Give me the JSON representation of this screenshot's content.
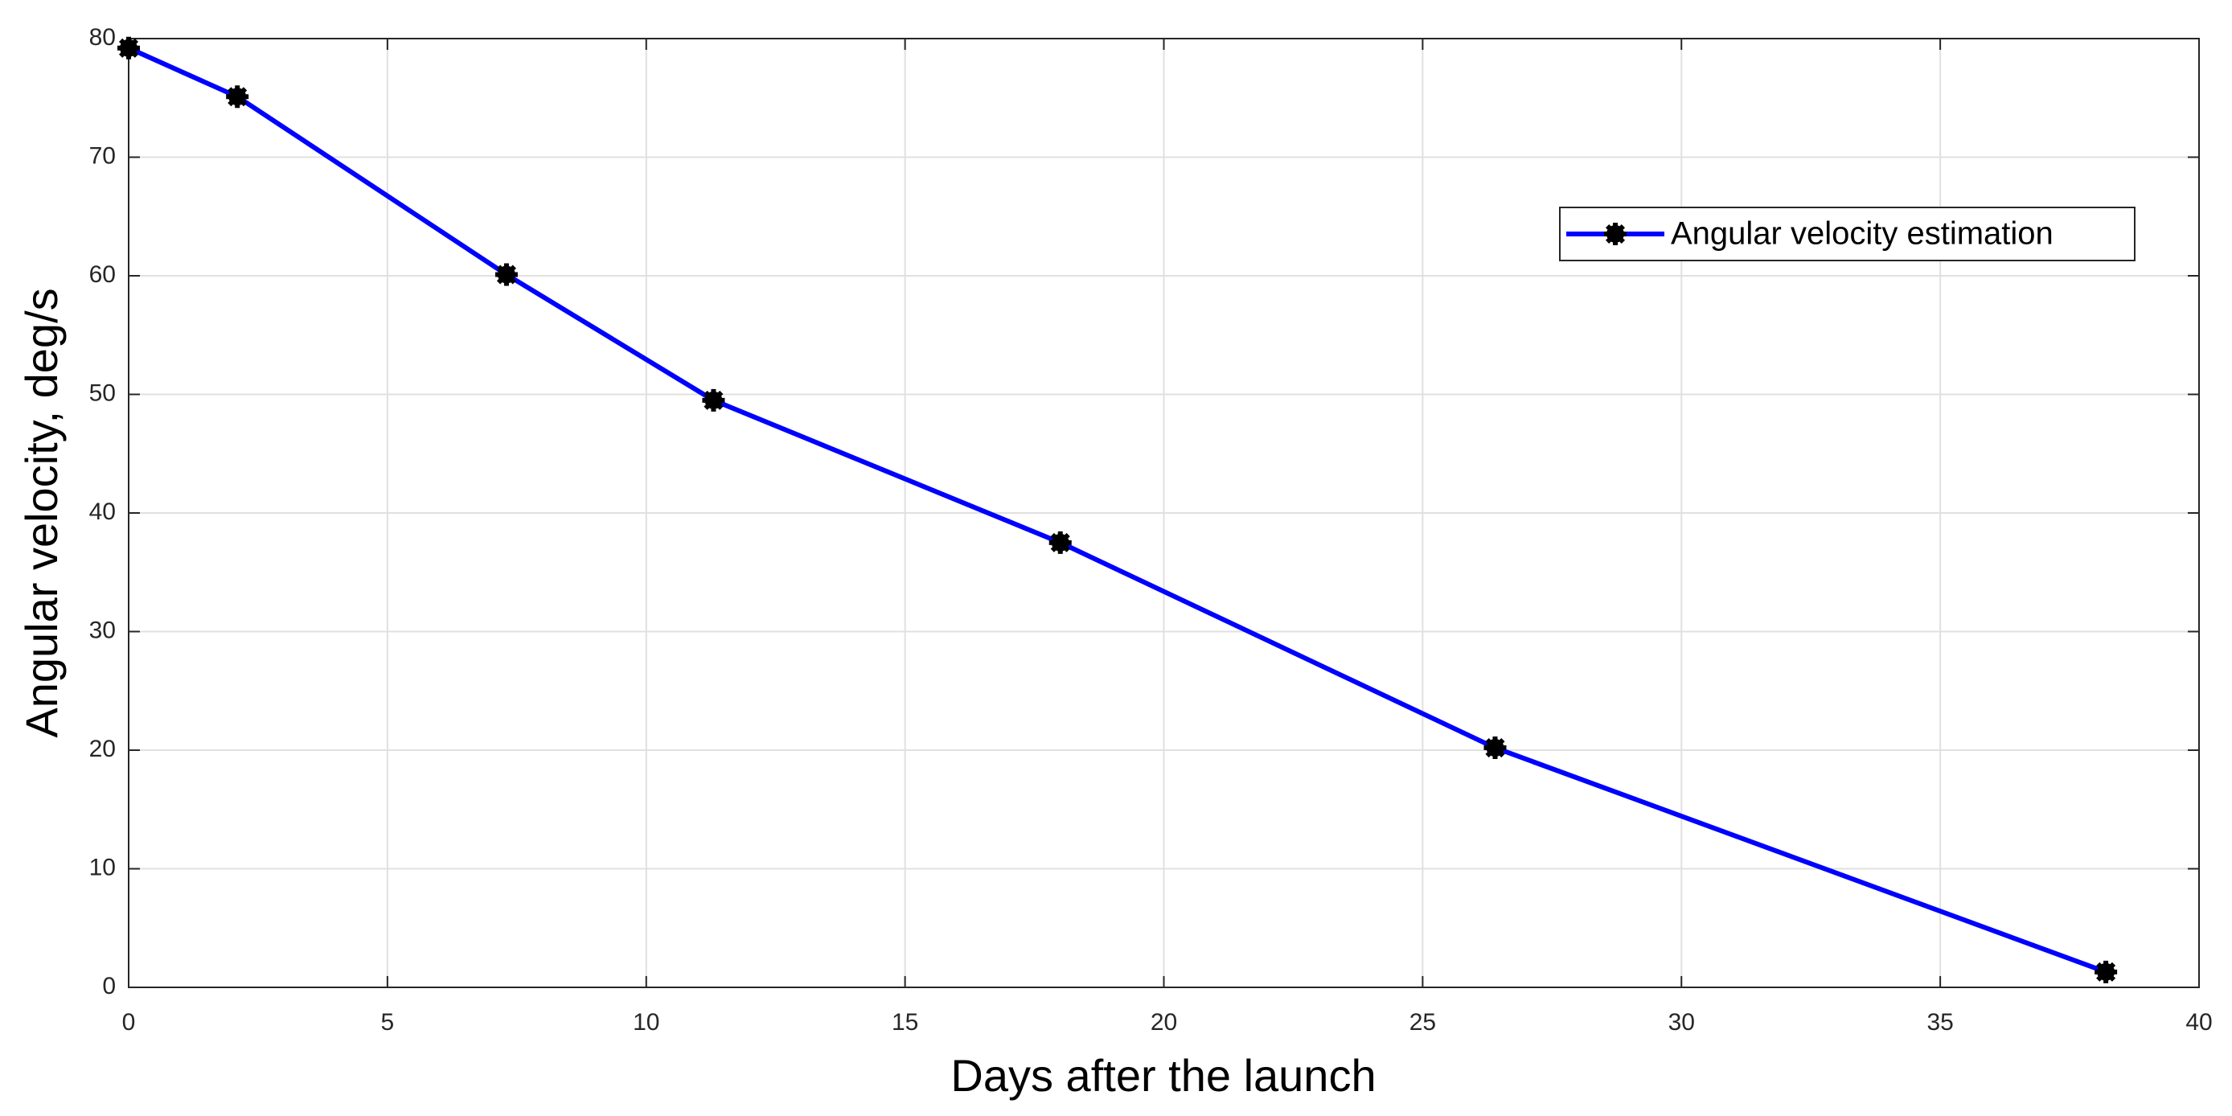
{
  "chart_data": {
    "type": "line",
    "xlabel": "Days after the launch",
    "ylabel": "Angular velocity, deg/s",
    "x": [
      0,
      2.1,
      7.3,
      11.3,
      18,
      26.4,
      38.2
    ],
    "series": [
      {
        "name": "Angular velocity estimation",
        "color": "#0000ff",
        "marker_color": "#000000",
        "values": [
          79.2,
          75.1,
          60.1,
          49.5,
          37.5,
          20.2,
          1.3
        ]
      }
    ],
    "xlim": [
      0,
      40
    ],
    "xticks": [
      0,
      5,
      10,
      15,
      20,
      25,
      30,
      35,
      40
    ],
    "ylim": [
      0,
      80
    ],
    "yticks": [
      0,
      10,
      20,
      30,
      40,
      50,
      60,
      70,
      80
    ],
    "grid": true,
    "legend": "northeast"
  }
}
